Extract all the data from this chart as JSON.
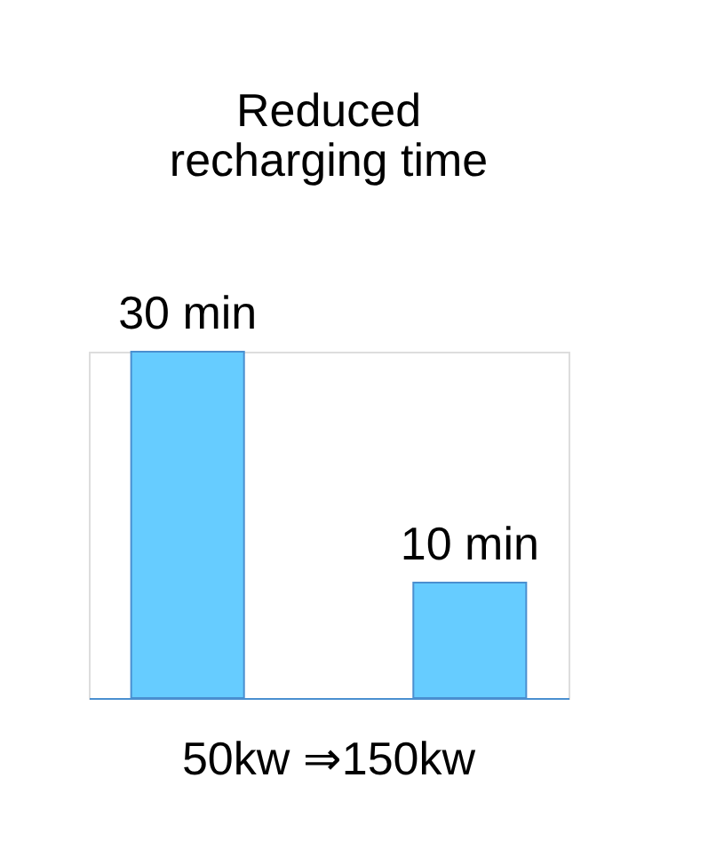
{
  "chart_data": {
    "type": "bar",
    "title": "Reduced recharging time",
    "categories": [
      null,
      null
    ],
    "values": [
      30,
      10
    ],
    "value_labels": [
      "30 min",
      "10 min"
    ],
    "color": "#66ccff",
    "annotations": [
      "50kw ⇒150kw"
    ]
  }
}
